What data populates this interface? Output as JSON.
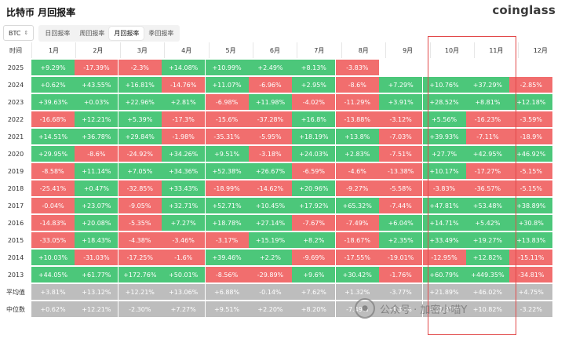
{
  "header": {
    "title": "比特币 月回报率",
    "logo": "coinglass"
  },
  "controls": {
    "coin": "BTC",
    "tabs": [
      "日回报率",
      "周回报率",
      "月回报率",
      "季回报率"
    ],
    "active_tab": 2
  },
  "table": {
    "row_header": "时间",
    "columns": [
      "1月",
      "2月",
      "3月",
      "4月",
      "5月",
      "6月",
      "7月",
      "8月",
      "9月",
      "10月",
      "11月",
      "12月"
    ],
    "rows": [
      {
        "label": "2025",
        "values": [
          "+9.29%",
          "-17.39%",
          "-2.3%",
          "+14.08%",
          "+10.99%",
          "+2.49%",
          "+8.13%",
          "-3.83%",
          "",
          "",
          "",
          ""
        ]
      },
      {
        "label": "2024",
        "values": [
          "+0.62%",
          "+43.55%",
          "+16.81%",
          "-14.76%",
          "+11.07%",
          "-6.96%",
          "+2.95%",
          "-8.6%",
          "+7.29%",
          "+10.76%",
          "+37.29%",
          "-2.85%"
        ]
      },
      {
        "label": "2023",
        "values": [
          "+39.63%",
          "+0.03%",
          "+22.96%",
          "+2.81%",
          "-6.98%",
          "+11.98%",
          "-4.02%",
          "-11.29%",
          "+3.91%",
          "+28.52%",
          "+8.81%",
          "+12.18%"
        ]
      },
      {
        "label": "2022",
        "values": [
          "-16.68%",
          "+12.21%",
          "+5.39%",
          "-17.3%",
          "-15.6%",
          "-37.28%",
          "+16.8%",
          "-13.88%",
          "-3.12%",
          "+5.56%",
          "-16.23%",
          "-3.59%"
        ]
      },
      {
        "label": "2021",
        "values": [
          "+14.51%",
          "+36.78%",
          "+29.84%",
          "-1.98%",
          "-35.31%",
          "-5.95%",
          "+18.19%",
          "+13.8%",
          "-7.03%",
          "+39.93%",
          "-7.11%",
          "-18.9%"
        ]
      },
      {
        "label": "2020",
        "values": [
          "+29.95%",
          "-8.6%",
          "-24.92%",
          "+34.26%",
          "+9.51%",
          "-3.18%",
          "+24.03%",
          "+2.83%",
          "-7.51%",
          "+27.7%",
          "+42.95%",
          "+46.92%"
        ]
      },
      {
        "label": "2019",
        "values": [
          "-8.58%",
          "+11.14%",
          "+7.05%",
          "+34.36%",
          "+52.38%",
          "+26.67%",
          "-6.59%",
          "-4.6%",
          "-13.38%",
          "+10.17%",
          "-17.27%",
          "-5.15%"
        ]
      },
      {
        "label": "2018",
        "values": [
          "-25.41%",
          "+0.47%",
          "-32.85%",
          "+33.43%",
          "-18.99%",
          "-14.62%",
          "+20.96%",
          "-9.27%",
          "-5.58%",
          "-3.83%",
          "-36.57%",
          "-5.15%"
        ]
      },
      {
        "label": "2017",
        "values": [
          "-0.04%",
          "+23.07%",
          "-9.05%",
          "+32.71%",
          "+52.71%",
          "+10.45%",
          "+17.92%",
          "+65.32%",
          "-7.44%",
          "+47.81%",
          "+53.48%",
          "+38.89%"
        ]
      },
      {
        "label": "2016",
        "values": [
          "-14.83%",
          "+20.08%",
          "-5.35%",
          "+7.27%",
          "+18.78%",
          "+27.14%",
          "-7.67%",
          "-7.49%",
          "+6.04%",
          "+14.71%",
          "+5.42%",
          "+30.8%"
        ]
      },
      {
        "label": "2015",
        "values": [
          "-33.05%",
          "+18.43%",
          "-4.38%",
          "-3.46%",
          "-3.17%",
          "+15.19%",
          "+8.2%",
          "-18.67%",
          "+2.35%",
          "+33.49%",
          "+19.27%",
          "+13.83%"
        ]
      },
      {
        "label": "2014",
        "values": [
          "+10.03%",
          "-31.03%",
          "-17.25%",
          "-1.6%",
          "+39.46%",
          "+2.2%",
          "-9.69%",
          "-17.55%",
          "-19.01%",
          "-12.95%",
          "+12.82%",
          "-15.11%"
        ]
      },
      {
        "label": "2013",
        "values": [
          "+44.05%",
          "+61.77%",
          "+172.76%",
          "+50.01%",
          "-8.56%",
          "-29.89%",
          "+9.6%",
          "+30.42%",
          "-1.76%",
          "+60.79%",
          "+449.35%",
          "-34.81%"
        ]
      }
    ],
    "summary_rows": [
      {
        "label": "平均值",
        "values": [
          "+3.81%",
          "+13.12%",
          "+12.21%",
          "+13.06%",
          "+6.88%",
          "-0.14%",
          "+7.62%",
          "+1.32%",
          "-3.77%",
          "+21.89%",
          "+46.02%",
          "+4.75%"
        ]
      },
      {
        "label": "中位数",
        "values": [
          "+0.62%",
          "+12.21%",
          "-2.30%",
          "+7.27%",
          "+9.51%",
          "+2.20%",
          "+8.20%",
          "-7.49%",
          "-4.35%",
          "+21.20%",
          "+10.82%",
          "-3.22%"
        ]
      }
    ]
  },
  "watermark": {
    "text": "公众号 · 加密小喵Y"
  },
  "colors": {
    "positive": "#4cc77a",
    "negative": "#f16e6e",
    "summary": "#bdbdbd",
    "highlight": "#e2494a"
  }
}
